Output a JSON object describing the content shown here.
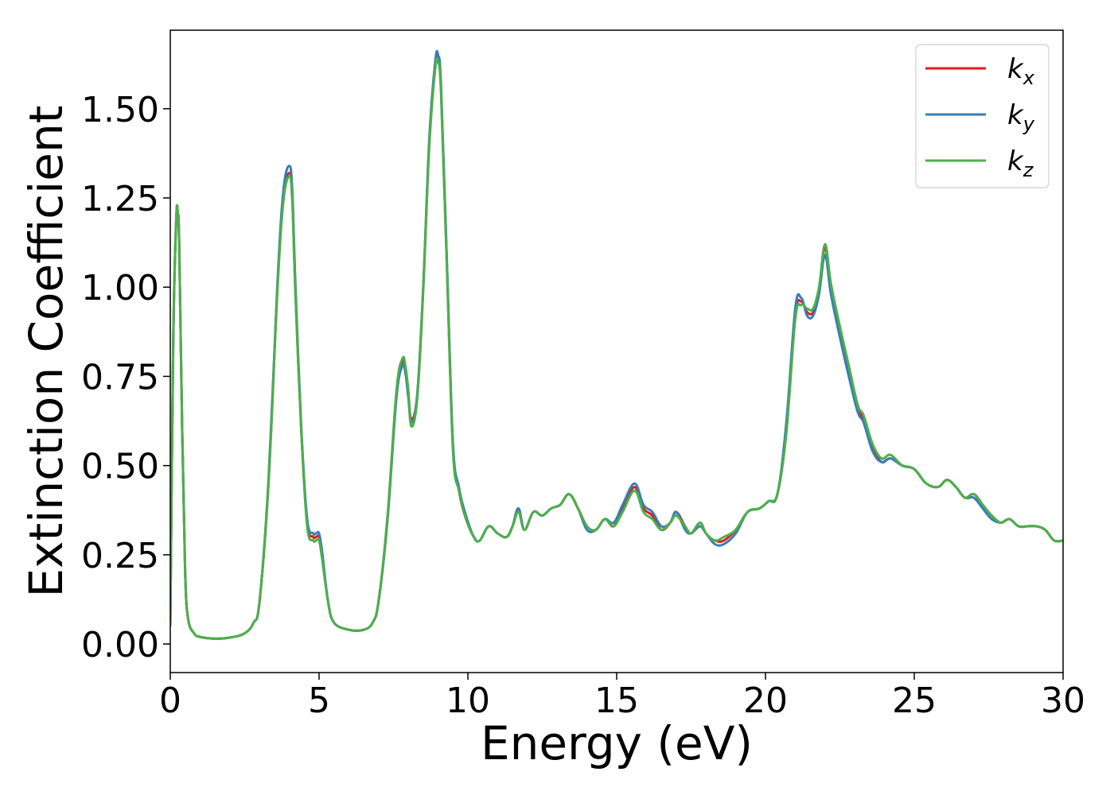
{
  "chart_data": {
    "type": "line",
    "xlabel": "Energy (eV)",
    "ylabel": "Extinction Coefficient",
    "xlim": [
      0,
      30
    ],
    "ylim": [
      -0.08,
      1.72
    ],
    "xticks": [
      0,
      5,
      10,
      15,
      20,
      25,
      30
    ],
    "xtick_labels": [
      "0",
      "5",
      "10",
      "15",
      "20",
      "25",
      "30"
    ],
    "yticks": [
      0.0,
      0.25,
      0.5,
      0.75,
      1.0,
      1.25,
      1.5
    ],
    "ytick_labels": [
      "0.00",
      "0.25",
      "0.50",
      "0.75",
      "1.00",
      "1.25",
      "1.50"
    ],
    "grid": false,
    "legend_position": "top-right",
    "x": [
      0,
      0.1,
      0.2,
      0.25,
      0.3,
      0.4,
      0.5,
      0.6,
      0.8,
      1.0,
      1.5,
      2.0,
      2.5,
      2.8,
      3.0,
      3.3,
      3.6,
      3.8,
      4.0,
      4.1,
      4.2,
      4.4,
      4.6,
      4.8,
      4.9,
      5.0,
      5.1,
      5.3,
      5.5,
      6.0,
      6.5,
      6.8,
      7.0,
      7.3,
      7.6,
      7.8,
      7.9,
      8.0,
      8.1,
      8.3,
      8.5,
      8.7,
      8.9,
      9.0,
      9.1,
      9.3,
      9.5,
      9.7,
      9.9,
      10.2,
      10.4,
      10.7,
      11.0,
      11.3,
      11.5,
      11.7,
      11.9,
      12.2,
      12.5,
      12.8,
      13.1,
      13.4,
      13.7,
      14.0,
      14.3,
      14.6,
      14.9,
      15.2,
      15.6,
      15.9,
      16.2,
      16.5,
      16.8,
      17.0,
      17.3,
      17.5,
      17.8,
      18.0,
      18.3,
      18.6,
      19.0,
      19.4,
      19.8,
      20.1,
      20.4,
      20.7,
      21.0,
      21.2,
      21.4,
      21.6,
      21.8,
      22.0,
      22.2,
      22.5,
      22.8,
      23.1,
      23.3,
      23.6,
      23.9,
      24.2,
      24.6,
      25.0,
      25.4,
      25.8,
      26.1,
      26.4,
      26.7,
      27.0,
      27.3,
      27.6,
      27.9,
      28.2,
      28.5,
      28.8,
      29.1,
      29.4,
      29.7,
      30.0
    ],
    "series": [
      {
        "name": "k_x",
        "color": "#e41a1c",
        "values": [
          0.05,
          0.85,
          1.19,
          1.21,
          1.12,
          0.6,
          0.2,
          0.07,
          0.03,
          0.02,
          0.015,
          0.018,
          0.03,
          0.06,
          0.12,
          0.45,
          1.0,
          1.25,
          1.32,
          1.25,
          1.0,
          0.6,
          0.34,
          0.3,
          0.3,
          0.3,
          0.25,
          0.12,
          0.06,
          0.04,
          0.04,
          0.06,
          0.12,
          0.35,
          0.7,
          0.79,
          0.77,
          0.7,
          0.63,
          0.7,
          1.0,
          1.4,
          1.62,
          1.64,
          1.55,
          1.05,
          0.55,
          0.43,
          0.36,
          0.3,
          0.29,
          0.33,
          0.31,
          0.3,
          0.33,
          0.38,
          0.32,
          0.37,
          0.36,
          0.38,
          0.39,
          0.42,
          0.38,
          0.33,
          0.32,
          0.35,
          0.33,
          0.38,
          0.44,
          0.38,
          0.36,
          0.32,
          0.34,
          0.37,
          0.33,
          0.31,
          0.34,
          0.31,
          0.29,
          0.29,
          0.32,
          0.37,
          0.38,
          0.4,
          0.42,
          0.6,
          0.92,
          0.96,
          0.93,
          0.93,
          0.99,
          1.11,
          1.0,
          0.88,
          0.77,
          0.66,
          0.63,
          0.55,
          0.51,
          0.52,
          0.5,
          0.49,
          0.45,
          0.44,
          0.46,
          0.44,
          0.41,
          0.42,
          0.39,
          0.36,
          0.34,
          0.35,
          0.33,
          0.33,
          0.33,
          0.32,
          0.29,
          0.29
        ]
      },
      {
        "name": "k_y",
        "color": "#377eb8",
        "values": [
          0.05,
          0.85,
          1.19,
          1.21,
          1.12,
          0.6,
          0.2,
          0.07,
          0.03,
          0.02,
          0.015,
          0.018,
          0.03,
          0.06,
          0.12,
          0.46,
          1.01,
          1.27,
          1.34,
          1.27,
          1.02,
          0.61,
          0.35,
          0.31,
          0.31,
          0.31,
          0.26,
          0.12,
          0.06,
          0.04,
          0.04,
          0.06,
          0.12,
          0.35,
          0.69,
          0.78,
          0.76,
          0.69,
          0.62,
          0.7,
          1.0,
          1.41,
          1.63,
          1.65,
          1.56,
          1.06,
          0.56,
          0.44,
          0.37,
          0.3,
          0.29,
          0.33,
          0.31,
          0.3,
          0.33,
          0.38,
          0.32,
          0.37,
          0.36,
          0.38,
          0.39,
          0.42,
          0.38,
          0.32,
          0.32,
          0.35,
          0.34,
          0.39,
          0.45,
          0.39,
          0.37,
          0.33,
          0.34,
          0.37,
          0.32,
          0.31,
          0.33,
          0.31,
          0.28,
          0.28,
          0.31,
          0.37,
          0.38,
          0.4,
          0.42,
          0.62,
          0.94,
          0.97,
          0.92,
          0.92,
          0.98,
          1.09,
          0.98,
          0.86,
          0.75,
          0.65,
          0.62,
          0.54,
          0.51,
          0.52,
          0.5,
          0.49,
          0.45,
          0.44,
          0.46,
          0.44,
          0.41,
          0.41,
          0.38,
          0.35,
          0.34,
          0.35,
          0.33,
          0.33,
          0.33,
          0.32,
          0.29,
          0.29
        ]
      },
      {
        "name": "k_z",
        "color": "#4daf4a",
        "values": [
          0.05,
          0.85,
          1.19,
          1.21,
          1.12,
          0.6,
          0.2,
          0.07,
          0.03,
          0.02,
          0.015,
          0.018,
          0.03,
          0.06,
          0.12,
          0.45,
          0.99,
          1.24,
          1.31,
          1.24,
          0.99,
          0.6,
          0.33,
          0.29,
          0.29,
          0.29,
          0.24,
          0.12,
          0.06,
          0.04,
          0.04,
          0.06,
          0.12,
          0.36,
          0.71,
          0.8,
          0.78,
          0.71,
          0.61,
          0.69,
          0.99,
          1.39,
          1.61,
          1.63,
          1.54,
          1.04,
          0.54,
          0.43,
          0.36,
          0.3,
          0.29,
          0.33,
          0.31,
          0.3,
          0.33,
          0.37,
          0.32,
          0.37,
          0.36,
          0.38,
          0.39,
          0.42,
          0.38,
          0.33,
          0.32,
          0.35,
          0.33,
          0.37,
          0.43,
          0.37,
          0.35,
          0.32,
          0.34,
          0.36,
          0.33,
          0.31,
          0.34,
          0.31,
          0.29,
          0.3,
          0.32,
          0.37,
          0.38,
          0.4,
          0.42,
          0.59,
          0.91,
          0.95,
          0.94,
          0.94,
          1.0,
          1.12,
          1.01,
          0.89,
          0.78,
          0.67,
          0.64,
          0.56,
          0.52,
          0.53,
          0.5,
          0.49,
          0.45,
          0.44,
          0.46,
          0.44,
          0.41,
          0.42,
          0.39,
          0.36,
          0.34,
          0.35,
          0.33,
          0.33,
          0.33,
          0.32,
          0.29,
          0.29
        ]
      }
    ]
  },
  "legend": [
    {
      "label": "k",
      "sub": "x",
      "color": "#e41a1c"
    },
    {
      "label": "k",
      "sub": "y",
      "color": "#377eb8"
    },
    {
      "label": "k",
      "sub": "z",
      "color": "#4daf4a"
    }
  ]
}
